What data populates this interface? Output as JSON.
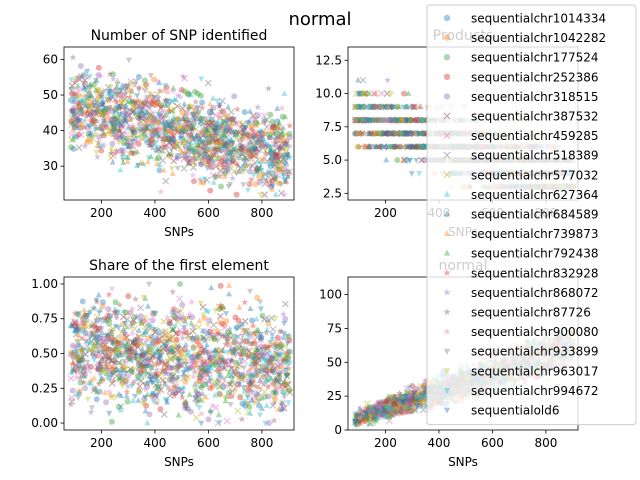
{
  "figure": {
    "suptitle": "normal"
  },
  "chart_data": [
    {
      "type": "scatter",
      "title": "Number of SNP identified",
      "xlabel": "SNPs",
      "ylabel": "",
      "xlim": [
        60,
        920
      ],
      "ylim": [
        20.5,
        63.5
      ],
      "xticks": [
        200,
        400,
        600,
        800
      ],
      "yticks": [
        30,
        40,
        50,
        60
      ],
      "ytick_labels": [
        "30",
        "40",
        "50",
        "60"
      ],
      "trend": {
        "at_min_x": 47,
        "at_max_x": 33,
        "spread": 13,
        "min": 22,
        "max": 62
      }
    },
    {
      "type": "scatter",
      "title": "Products",
      "xlabel": "SNPs",
      "ylabel": "",
      "xlim": [
        60,
        920
      ],
      "ylim": [
        2.0,
        13.5
      ],
      "xticks": [
        200,
        400,
        600,
        800
      ],
      "yticks": [
        2.5,
        5.0,
        7.5,
        10.0,
        12.5
      ],
      "ytick_labels": [
        "2.5",
        "5.0",
        "7.5",
        "10.0",
        "12.5"
      ],
      "trend": {
        "at_min_x": 8.5,
        "at_max_x": 3.2,
        "spread": 2.5,
        "min": 3,
        "max": 13,
        "integer": true
      }
    },
    {
      "type": "scatter",
      "title": "Share of the first element",
      "xlabel": "SNPs",
      "ylabel": "",
      "xlim": [
        60,
        920
      ],
      "ylim": [
        -0.05,
        1.05
      ],
      "xticks": [
        200,
        400,
        600,
        800
      ],
      "yticks": [
        0.0,
        0.25,
        0.5,
        0.75,
        1.0
      ],
      "ytick_labels": [
        "0.00",
        "0.25",
        "0.50",
        "0.75",
        "1.00"
      ],
      "trend": {
        "at_min_x": 0.52,
        "at_max_x": 0.42,
        "spread": 0.42,
        "min": 0.0,
        "max": 1.0
      }
    },
    {
      "type": "scatter",
      "title": "normal",
      "xlabel": "SNPs",
      "ylabel": "",
      "xlim": [
        60,
        920
      ],
      "ylim": [
        0,
        113
      ],
      "xticks": [
        200,
        400,
        600,
        800
      ],
      "yticks": [
        0,
        25,
        50,
        75,
        100
      ],
      "ytick_labels": [
        "0",
        "25",
        "50",
        "75",
        "100"
      ],
      "trend": {
        "at_min_x": 8,
        "at_max_x": 62,
        "spread": 14,
        "min": 2,
        "max": 110
      }
    }
  ],
  "legend": {
    "placement": "top-right",
    "entries": [
      {
        "label": "sequentialchr1014334",
        "color": "#1f77b4",
        "marker": "circle"
      },
      {
        "label": "sequentialchr1042282",
        "color": "#ff7f0e",
        "marker": "circle"
      },
      {
        "label": "sequentialchr177524",
        "color": "#2ca02c",
        "marker": "circle"
      },
      {
        "label": "sequentialchr252386",
        "color": "#d62728",
        "marker": "circle"
      },
      {
        "label": "sequentialchr318515",
        "color": "#9467bd",
        "marker": "circle"
      },
      {
        "label": "sequentialchr387532",
        "color": "#8c564b",
        "marker": "x"
      },
      {
        "label": "sequentialchr459285",
        "color": "#e377c2",
        "marker": "x"
      },
      {
        "label": "sequentialchr518389",
        "color": "#7f7f7f",
        "marker": "x"
      },
      {
        "label": "sequentialchr577032",
        "color": "#bcbd22",
        "marker": "x"
      },
      {
        "label": "sequentialchr627364",
        "color": "#17becf",
        "marker": "triangle-up"
      },
      {
        "label": "sequentialchr684589",
        "color": "#1f77b4",
        "marker": "triangle-up"
      },
      {
        "label": "sequentialchr739873",
        "color": "#ff7f0e",
        "marker": "triangle-up"
      },
      {
        "label": "sequentialchr792438",
        "color": "#2ca02c",
        "marker": "triangle-up"
      },
      {
        "label": "sequentialchr832928",
        "color": "#d62728",
        "marker": "star"
      },
      {
        "label": "sequentialchr868072",
        "color": "#9467bd",
        "marker": "star"
      },
      {
        "label": "sequentialchr87726",
        "color": "#8c564b",
        "marker": "star"
      },
      {
        "label": "sequentialchr900080",
        "color": "#e377c2",
        "marker": "star"
      },
      {
        "label": "sequentialchr933899",
        "color": "#7f7f7f",
        "marker": "triangle-down"
      },
      {
        "label": "sequentialchr963017",
        "color": "#bcbd22",
        "marker": "triangle-down"
      },
      {
        "label": "sequentialchr994672",
        "color": "#17becf",
        "marker": "triangle-down"
      },
      {
        "label": "sequentialold6",
        "color": "#1f77b4",
        "marker": "triangle-down"
      }
    ]
  }
}
